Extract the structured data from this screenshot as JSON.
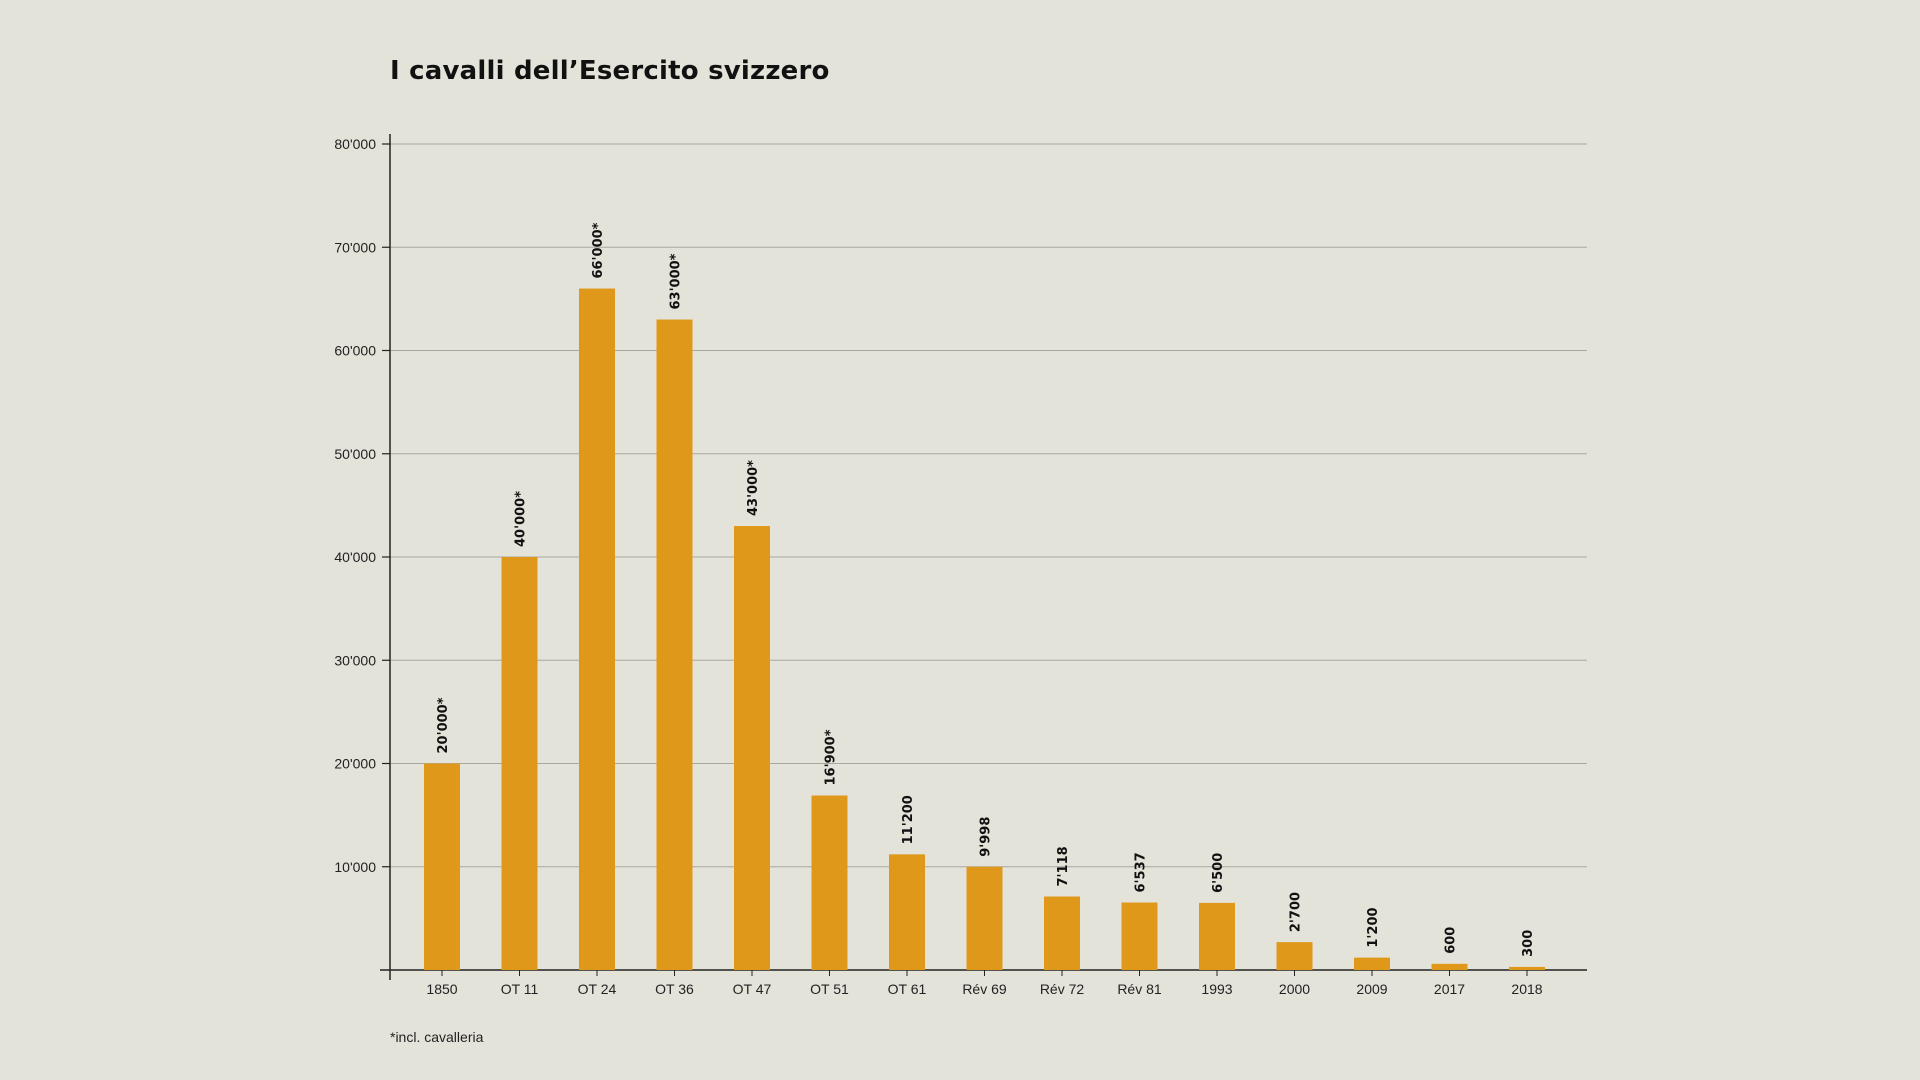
{
  "chart_data": {
    "type": "bar",
    "title": "I cavalli dell’Esercito svizzero",
    "footnote": "*incl. cavalleria",
    "xlabel": "",
    "ylabel": "",
    "ylim": [
      0,
      80000
    ],
    "yticks": [
      {
        "value": 80000,
        "label": "80'000"
      },
      {
        "value": 70000,
        "label": "70'000"
      },
      {
        "value": 60000,
        "label": "60'000"
      },
      {
        "value": 50000,
        "label": "50'000"
      },
      {
        "value": 40000,
        "label": "40'000"
      },
      {
        "value": 30000,
        "label": "30'000"
      },
      {
        "value": 20000,
        "label": "20'000"
      },
      {
        "value": 10000,
        "label": "10'000"
      }
    ],
    "grid": true,
    "bar_color": "#e0981a",
    "categories": [
      "1850",
      "OT 11",
      "OT 24",
      "OT 36",
      "OT 47",
      "OT 51",
      "OT 61",
      "Rév 69",
      "Rév 72",
      "Rév 81",
      "1993",
      "2000",
      "2009",
      "2017",
      "2018"
    ],
    "values": [
      20000,
      40000,
      66000,
      63000,
      43000,
      16900,
      11200,
      9998,
      7118,
      6537,
      6500,
      2700,
      1200,
      600,
      300
    ],
    "value_labels": [
      "20'000*",
      "40'000*",
      "66'000*",
      "63'000*",
      "43'000*",
      "16'900*",
      "11'200",
      "9'998",
      "7'118",
      "6'537",
      "6'500",
      "2'700",
      "1'200",
      "600",
      "300"
    ]
  }
}
